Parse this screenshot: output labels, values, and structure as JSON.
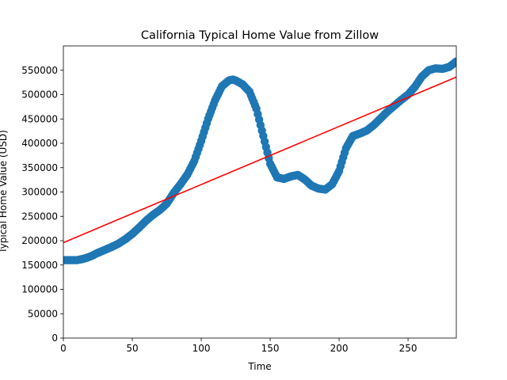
{
  "chart_data": {
    "type": "scatter",
    "title": "California Typical Home Value from Zillow",
    "xlabel": "Time",
    "ylabel": "Typical Home Value (USD)",
    "xlim": [
      0,
      285
    ],
    "ylim": [
      0,
      600000
    ],
    "xticks": [
      0,
      50,
      100,
      150,
      200,
      250
    ],
    "yticks": [
      0,
      50000,
      100000,
      150000,
      200000,
      250000,
      300000,
      350000,
      400000,
      450000,
      500000,
      550000
    ],
    "grid": false,
    "colors": {
      "points": "#1f77b4",
      "trend": "#ff0000"
    },
    "series": [
      {
        "type": "scatter",
        "x": [
          0,
          5,
          10,
          15,
          20,
          25,
          30,
          35,
          40,
          45,
          50,
          55,
          60,
          65,
          70,
          75,
          80,
          85,
          90,
          95,
          100,
          105,
          110,
          115,
          120,
          123,
          125,
          130,
          135,
          140,
          145,
          150,
          155,
          160,
          165,
          170,
          175,
          180,
          185,
          190,
          195,
          200,
          205,
          210,
          215,
          220,
          225,
          230,
          235,
          240,
          245,
          250,
          255,
          260,
          265,
          270,
          275,
          280,
          285
        ],
        "y": [
          160000,
          160000,
          160000,
          163000,
          168000,
          175000,
          181000,
          187000,
          194000,
          203000,
          214000,
          227000,
          241000,
          253000,
          263000,
          276000,
          298000,
          316000,
          336000,
          364000,
          405000,
          450000,
          488000,
          517000,
          529000,
          531000,
          529000,
          521000,
          506000,
          471000,
          415000,
          358000,
          330000,
          327000,
          332000,
          335000,
          326000,
          313000,
          307000,
          305000,
          316000,
          343000,
          390000,
          415000,
          420000,
          426000,
          437000,
          451000,
          465000,
          477000,
          489000,
          500000,
          516000,
          537000,
          550000,
          554000,
          553000,
          557000,
          568000
        ]
      },
      {
        "type": "line",
        "x": [
          0,
          285
        ],
        "y": [
          196000,
          536000
        ]
      }
    ]
  }
}
